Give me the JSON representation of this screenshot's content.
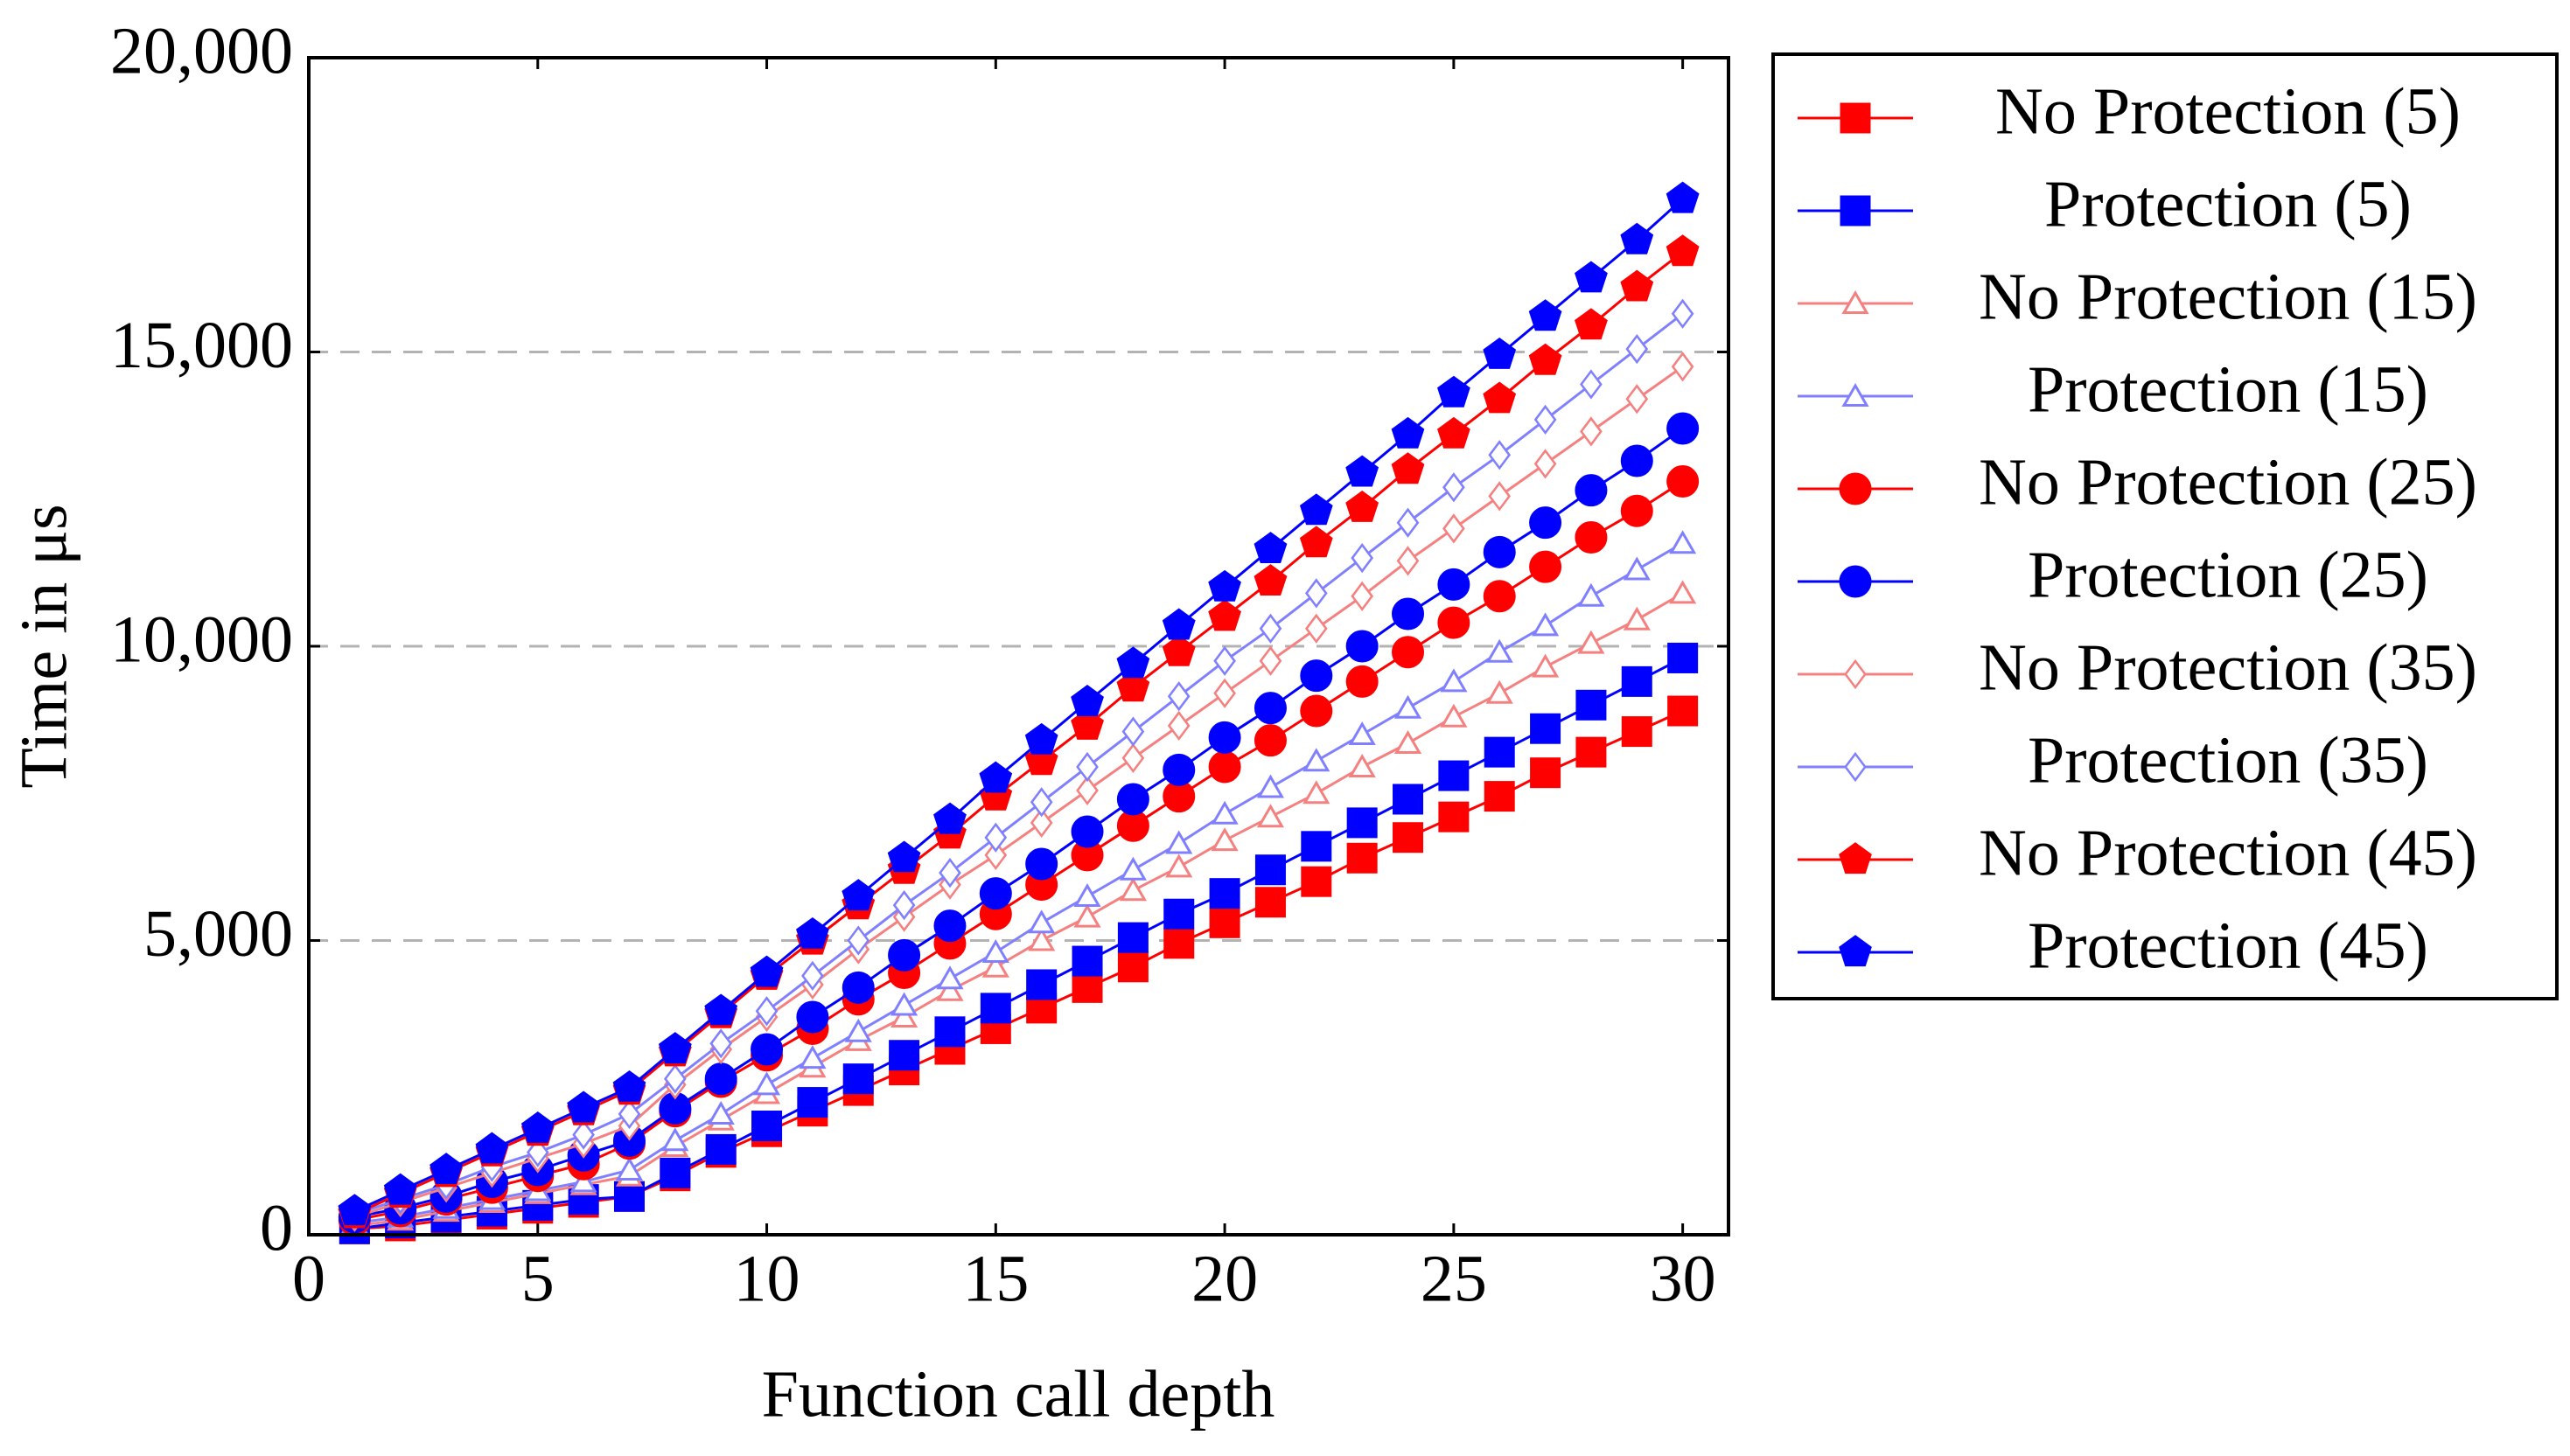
{
  "chart_data": {
    "type": "line",
    "x_label": "Function call depth",
    "y_label": "Time in μs",
    "x": [
      1,
      2,
      3,
      4,
      5,
      6,
      7,
      8,
      9,
      10,
      11,
      12,
      13,
      14,
      15,
      16,
      17,
      18,
      19,
      20,
      21,
      22,
      23,
      24,
      25,
      26,
      27,
      28,
      29,
      30
    ],
    "xlim": [
      0,
      31
    ],
    "xticks": [
      0,
      5,
      10,
      15,
      20,
      25,
      30
    ],
    "ylim": [
      0,
      20000
    ],
    "yticks": [
      0,
      {
        "value": 5000,
        "label": "5,000"
      },
      {
        "value": 10000,
        "label": "10,000"
      },
      {
        "value": 15000,
        "label": "15,000"
      },
      {
        "value": 20000,
        "label": "20,000"
      }
    ],
    "grid": "y-dashed",
    "legend": "outside-right",
    "series": [
      {
        "name": "No Protection (5)",
        "color": "#ff0000",
        "marker": "square",
        "filled": true,
        "values": [
          100,
          150,
          250,
          350,
          450,
          550,
          650,
          1000,
          1400,
          1750,
          2100,
          2450,
          2800,
          3150,
          3500,
          3850,
          4200,
          4550,
          4950,
          5300,
          5650,
          6000,
          6400,
          6750,
          7100,
          7450,
          7850,
          8200,
          8550,
          8900
        ]
      },
      {
        "name": "Protection (5)",
        "color": "#0000ff",
        "marker": "square",
        "filled": true,
        "values": [
          100,
          200,
          300,
          400,
          500,
          600,
          650,
          1050,
          1450,
          1850,
          2250,
          2650,
          3050,
          3450,
          3850,
          4250,
          4650,
          5050,
          5450,
          5800,
          6200,
          6600,
          7000,
          7400,
          7800,
          8200,
          8600,
          9000,
          9400,
          9800
        ]
      },
      {
        "name": "No Protection (15)",
        "color": "#f58080",
        "marker": "triangle",
        "filled": false,
        "values": [
          150,
          250,
          400,
          550,
          700,
          850,
          1000,
          1500,
          1950,
          2400,
          2850,
          3300,
          3700,
          4150,
          4550,
          5000,
          5400,
          5850,
          6250,
          6700,
          7100,
          7500,
          7950,
          8350,
          8800,
          9200,
          9650,
          10050,
          10450,
          10900
        ]
      },
      {
        "name": "Protection (15)",
        "color": "#8080ff",
        "marker": "triangle",
        "filled": false,
        "values": [
          200,
          300,
          450,
          600,
          750,
          900,
          1100,
          1600,
          2050,
          2550,
          3000,
          3450,
          3900,
          4350,
          4800,
          5300,
          5750,
          6200,
          6650,
          7150,
          7600,
          8050,
          8500,
          8950,
          9400,
          9900,
          10350,
          10850,
          11300,
          11750
        ]
      },
      {
        "name": "No Protection (25)",
        "color": "#ff0000",
        "marker": "circle",
        "filled": true,
        "values": [
          250,
          400,
          600,
          800,
          1000,
          1200,
          1550,
          2100,
          2600,
          3050,
          3500,
          4000,
          4450,
          4950,
          5450,
          5950,
          6450,
          6950,
          7450,
          7950,
          8400,
          8900,
          9400,
          9900,
          10400,
          10850,
          11350,
          11850,
          12300,
          12800
        ]
      },
      {
        "name": "Protection (25)",
        "color": "#0000ff",
        "marker": "circle",
        "filled": true,
        "values": [
          300,
          450,
          650,
          900,
          1100,
          1350,
          1600,
          2150,
          2650,
          3150,
          3700,
          4200,
          4750,
          5250,
          5800,
          6300,
          6850,
          7400,
          7900,
          8450,
          8950,
          9500,
          10000,
          10550,
          11050,
          11600,
          12100,
          12650,
          13150,
          13700
        ]
      },
      {
        "name": "No Protection (35)",
        "color": "#f58080",
        "marker": "diamond",
        "filled": false,
        "values": [
          300,
          550,
          800,
          1050,
          1300,
          1550,
          1850,
          2550,
          3150,
          3700,
          4250,
          4850,
          5400,
          5950,
          6450,
          7000,
          7550,
          8100,
          8650,
          9200,
          9750,
          10300,
          10850,
          11450,
          12000,
          12550,
          13100,
          13650,
          14200,
          14750
        ]
      },
      {
        "name": "Protection (35)",
        "color": "#8080ff",
        "marker": "diamond",
        "filled": false,
        "values": [
          350,
          600,
          850,
          1150,
          1400,
          1700,
          2050,
          2650,
          3250,
          3800,
          4400,
          5000,
          5600,
          6150,
          6750,
          7350,
          7950,
          8550,
          9150,
          9750,
          10300,
          10900,
          11500,
          12100,
          12700,
          13250,
          13850,
          14450,
          15050,
          15650
        ]
      },
      {
        "name": "No Protection (45)",
        "color": "#ff0000",
        "marker": "pentagon",
        "filled": true,
        "values": [
          350,
          700,
          1050,
          1400,
          1750,
          2100,
          2450,
          3100,
          3750,
          4400,
          5000,
          5600,
          6200,
          6800,
          7450,
          8050,
          8650,
          9300,
          9900,
          10500,
          11100,
          11750,
          12350,
          13000,
          13600,
          14200,
          14850,
          15450,
          16100,
          16700
        ]
      },
      {
        "name": "Protection (45)",
        "color": "#0000ff",
        "marker": "pentagon",
        "filled": true,
        "values": [
          400,
          750,
          1100,
          1450,
          1800,
          2150,
          2500,
          3150,
          3800,
          4450,
          5100,
          5750,
          6400,
          7050,
          7750,
          8400,
          9050,
          9700,
          10350,
          11000,
          11650,
          12300,
          12950,
          13600,
          14300,
          14950,
          15600,
          16250,
          16900,
          17600
        ]
      }
    ]
  }
}
